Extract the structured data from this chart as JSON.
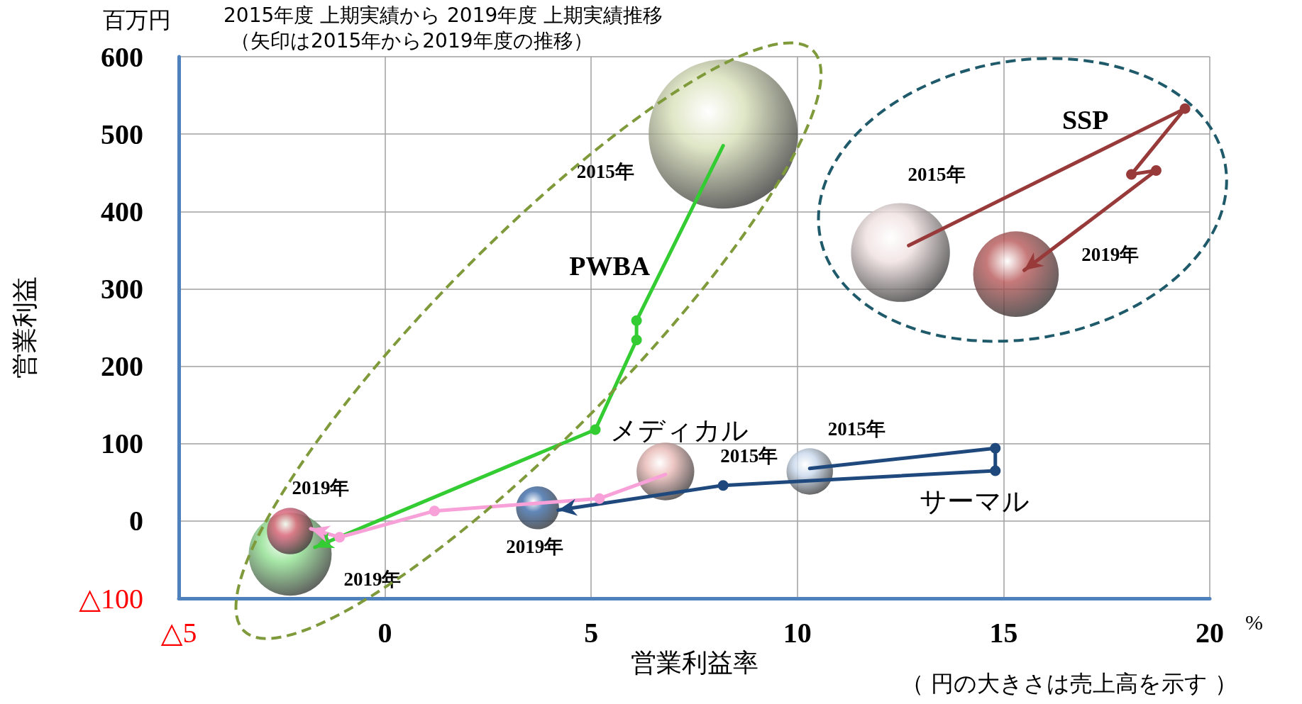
{
  "chart_data": {
    "type": "bubble",
    "title": "2015年度 上期実績から 2019年度 上期実績推移",
    "subtitle": "（矢印は2015年から2019年度の推移）",
    "xlabel": "営業利益率",
    "ylabel": "営業利益",
    "xlim": [
      -5,
      20
    ],
    "xticks": [
      {
        "value": -5,
        "label": "△5"
      },
      0,
      5,
      10,
      15,
      20
    ],
    "ylim": [
      -100,
      600
    ],
    "yticks": [
      {
        "value": -100,
        "label": "△100"
      },
      0,
      100,
      200,
      300,
      400,
      500,
      600
    ],
    "grid": true,
    "legend": false,
    "marker": "circle",
    "line_style": "solid",
    "series": [
      {
        "x": [
          8.2,
          -2.3
        ],
        "values": [
          500,
          -43
        ],
        "sizes": [
          1,
          0.31
        ],
        "colors": [
          "#d8e0b8",
          "#90e090"
        ]
      },
      {
        "x": [
          6.8,
          -2.3
        ],
        "values": [
          64,
          -13
        ],
        "sizes": [
          0.15,
          0.097
        ],
        "colors": [
          "#e8b8b4",
          "#e0607a"
        ]
      },
      {
        "x": [
          10.3,
          3.7
        ],
        "values": [
          64,
          17
        ],
        "sizes": [
          0.097,
          0.083
        ],
        "colors": [
          "#c8d8ec",
          "#3a6aa8"
        ]
      },
      {
        "x": [
          12.5,
          15.3
        ],
        "values": [
          347,
          319
        ],
        "sizes": [
          0.44,
          0.33
        ],
        "colors": [
          "#f0e0e0",
          "#b85858"
        ]
      },
      {
        "type": "line",
        "name": "PWBA",
        "x": [
          8.2,
          6.1,
          6.1,
          5.1,
          -1.7
        ],
        "values": [
          485,
          259,
          234,
          118,
          -34
        ],
        "color": "#33cc33"
      },
      {
        "type": "line",
        "name": "メディカル",
        "x": [
          6.8,
          5.2,
          1.2,
          -1.1,
          -1.8
        ],
        "values": [
          60,
          29,
          13,
          -21,
          -10
        ],
        "color": "#f8a0d8"
      },
      {
        "type": "line",
        "name": "サーマル",
        "x": [
          10.3,
          14.8,
          14.8,
          8.2,
          4.2
        ],
        "values": [
          68,
          94,
          65,
          46,
          14
        ],
        "color": "#1f497d"
      },
      {
        "type": "line",
        "name": "SSP",
        "x": [
          12.7,
          19.4,
          18.1,
          18.7,
          15.5
        ],
        "values": [
          356,
          533,
          448,
          453,
          324
        ],
        "color": "#983a3a"
      }
    ],
    "annotations": [
      "百万円",
      "%",
      "（ 円の大きさは売上高を示す ）",
      "2015年",
      "2019年",
      "2015年",
      "2019年",
      "2015年",
      "2019年",
      "2015年",
      "2019年"
    ]
  }
}
